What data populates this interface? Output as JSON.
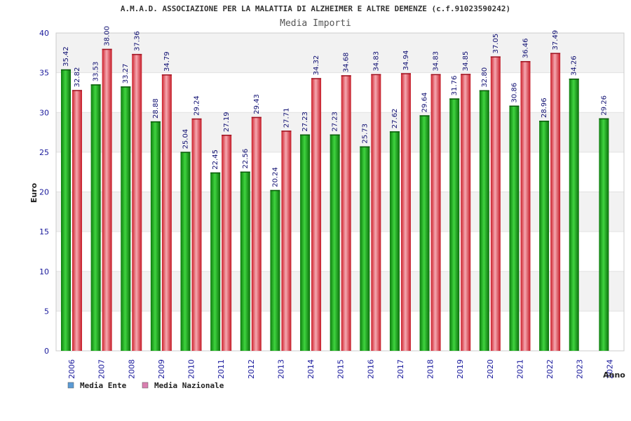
{
  "chart_data": {
    "type": "bar",
    "title": "A.M.A.D. ASSOCIAZIONE PER LA MALATTIA DI ALZHEIMER E ALTRE DEMENZE (c.f.91023590242)",
    "subtitle": "Media Importi",
    "xlabel": "Anno",
    "ylabel": "Euro",
    "ylim": [
      0,
      40
    ],
    "yticks": [
      "0",
      "5",
      "10",
      "15",
      "20",
      "25",
      "30",
      "35",
      "40"
    ],
    "categories": [
      "2006",
      "2007",
      "2008",
      "2009",
      "2010",
      "2011",
      "2012",
      "2013",
      "2014",
      "2015",
      "2016",
      "2017",
      "2018",
      "2019",
      "2020",
      "2021",
      "2022",
      "2023",
      "2024"
    ],
    "series": [
      {
        "name": "Media Ente",
        "color": "#1aa81a",
        "values": [
          35.42,
          33.53,
          33.27,
          28.88,
          25.04,
          22.45,
          22.56,
          20.24,
          27.23,
          27.23,
          25.73,
          27.62,
          29.64,
          31.76,
          32.8,
          30.86,
          28.96,
          34.26,
          29.26
        ],
        "labels": [
          "35.42",
          "33.53",
          "33.27",
          "28.88",
          "25.04",
          "22.45",
          "22.56",
          "20.24",
          "27.23",
          "27.23",
          "25.73",
          "27.62",
          "29.64",
          "31.76",
          "32.80",
          "30.86",
          "28.96",
          "34.26",
          "29.26"
        ]
      },
      {
        "name": "Media Nazionale",
        "color": "#e8303c",
        "values": [
          32.82,
          38.0,
          37.36,
          34.79,
          29.24,
          27.19,
          29.43,
          27.71,
          34.32,
          34.68,
          34.83,
          34.94,
          34.83,
          34.85,
          37.05,
          36.46,
          37.49,
          null,
          null
        ],
        "labels": [
          "32.82",
          "38.00",
          "37.36",
          "34.79",
          "29.24",
          "27.19",
          "29.43",
          "27.71",
          "34.32",
          "34.68",
          "34.83",
          "34.94",
          "34.83",
          "34.85",
          "37.05",
          "36.46",
          "37.49",
          null,
          null
        ]
      }
    ],
    "legend": {
      "placement": "bottom-left",
      "items": [
        {
          "label": "Media Ente",
          "swatch_color": "#5b9bd5"
        },
        {
          "label": "Media Nazionale",
          "swatch_color": "#d97fb0"
        }
      ]
    },
    "grid": true,
    "band_colors": [
      "#ffffff",
      "#f2f2f2"
    ]
  }
}
